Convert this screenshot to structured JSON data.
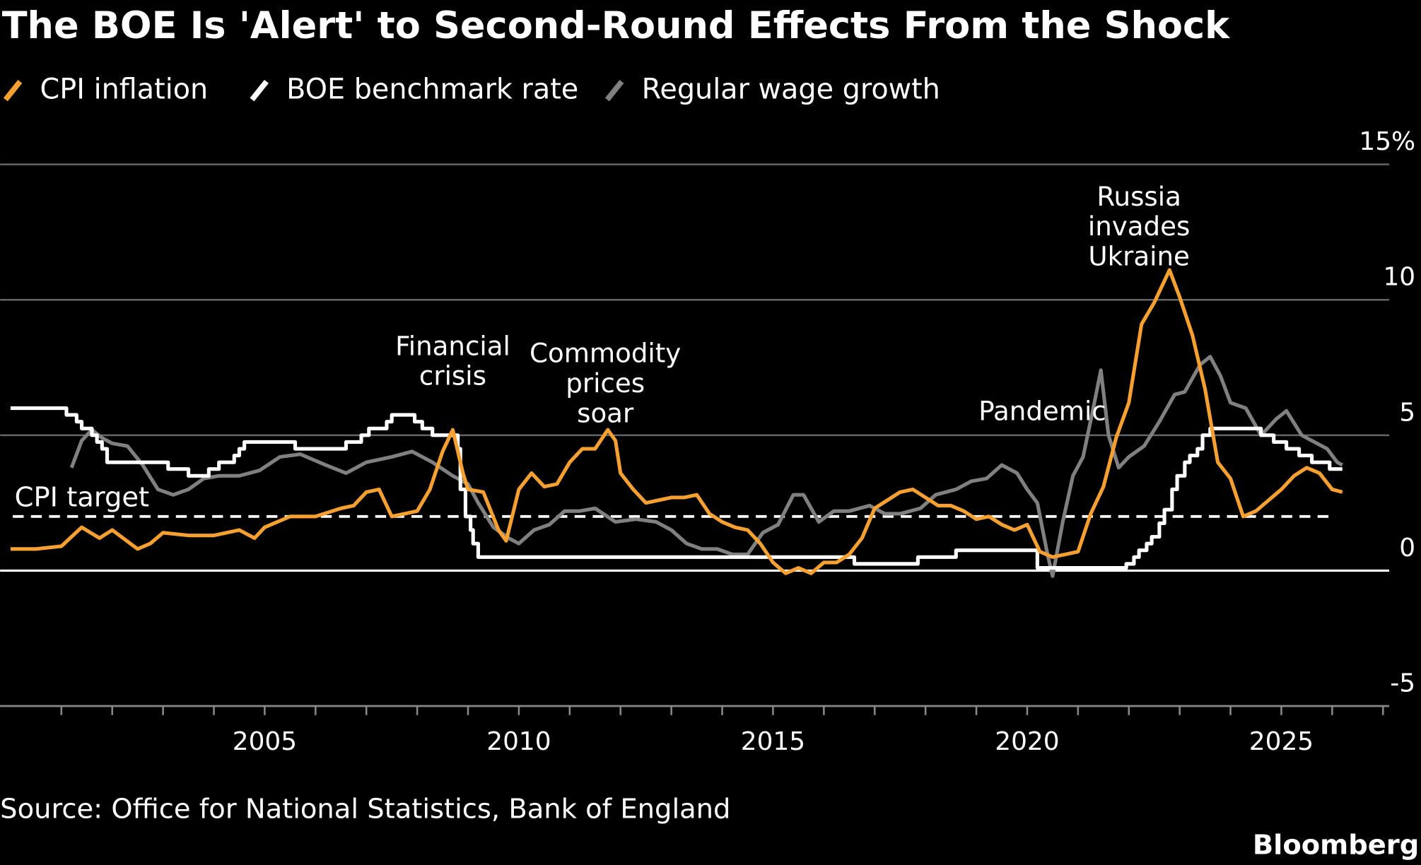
{
  "title": "The BOE Is 'Alert' to Second-Round Effects From the Shock",
  "source": "Source: Office for National Statistics, Bank of England",
  "brand": "Bloomberg",
  "chart_data": {
    "type": "line",
    "title": "The BOE Is 'Alert' to Second-Round Effects From the Shock",
    "xlabel": "",
    "ylabel": "",
    "xlim": [
      1999.8,
      2027.1
    ],
    "ylim": [
      -5,
      15
    ],
    "x_ticks": [
      "2005",
      "2010",
      "2015",
      "2020",
      "2025"
    ],
    "y_ticks": [
      "15%",
      "10",
      "5",
      "0",
      "-5"
    ],
    "grid": true,
    "legend_position": "top-left",
    "reference_line": {
      "label": "CPI target",
      "value": 2
    },
    "annotations": [
      {
        "lines": [
          "Financial",
          "crisis"
        ],
        "x": 2008.7
      },
      {
        "lines": [
          "Commodity",
          "prices",
          "soar"
        ],
        "x": 2011.7
      },
      {
        "lines": [
          "Pandemic"
        ],
        "x": 2020.3
      },
      {
        "lines": [
          "Russia",
          "invades",
          "Ukraine"
        ],
        "x": 2022.2
      }
    ],
    "series": [
      {
        "name": "CPI inflation",
        "color": "#f5a030",
        "points": [
          [
            2000.0,
            0.8
          ],
          [
            2000.5,
            0.8
          ],
          [
            2001.0,
            0.9
          ],
          [
            2001.4,
            1.6
          ],
          [
            2001.75,
            1.2
          ],
          [
            2002.0,
            1.5
          ],
          [
            2002.5,
            0.8
          ],
          [
            2002.75,
            1.0
          ],
          [
            2003.0,
            1.4
          ],
          [
            2003.5,
            1.3
          ],
          [
            2004.0,
            1.3
          ],
          [
            2004.5,
            1.5
          ],
          [
            2004.8,
            1.2
          ],
          [
            2005.0,
            1.6
          ],
          [
            2005.5,
            2.0
          ],
          [
            2006.0,
            2.0
          ],
          [
            2006.5,
            2.3
          ],
          [
            2006.75,
            2.4
          ],
          [
            2007.0,
            2.9
          ],
          [
            2007.25,
            3.0
          ],
          [
            2007.5,
            2.0
          ],
          [
            2007.75,
            2.1
          ],
          [
            2008.0,
            2.2
          ],
          [
            2008.25,
            3.0
          ],
          [
            2008.5,
            4.4
          ],
          [
            2008.7,
            5.2
          ],
          [
            2008.9,
            3.6
          ],
          [
            2009.0,
            3.0
          ],
          [
            2009.3,
            2.9
          ],
          [
            2009.6,
            1.5
          ],
          [
            2009.75,
            1.1
          ],
          [
            2010.0,
            3.0
          ],
          [
            2010.25,
            3.6
          ],
          [
            2010.5,
            3.1
          ],
          [
            2010.75,
            3.2
          ],
          [
            2011.0,
            4.0
          ],
          [
            2011.25,
            4.5
          ],
          [
            2011.5,
            4.5
          ],
          [
            2011.75,
            5.2
          ],
          [
            2011.9,
            4.8
          ],
          [
            2012.0,
            3.6
          ],
          [
            2012.25,
            3.0
          ],
          [
            2012.5,
            2.5
          ],
          [
            2012.75,
            2.6
          ],
          [
            2013.0,
            2.7
          ],
          [
            2013.25,
            2.7
          ],
          [
            2013.5,
            2.8
          ],
          [
            2013.75,
            2.1
          ],
          [
            2014.0,
            1.8
          ],
          [
            2014.25,
            1.6
          ],
          [
            2014.5,
            1.5
          ],
          [
            2014.75,
            1.0
          ],
          [
            2015.0,
            0.3
          ],
          [
            2015.25,
            -0.1
          ],
          [
            2015.5,
            0.1
          ],
          [
            2015.75,
            -0.1
          ],
          [
            2016.0,
            0.3
          ],
          [
            2016.25,
            0.3
          ],
          [
            2016.5,
            0.6
          ],
          [
            2016.75,
            1.2
          ],
          [
            2017.0,
            2.3
          ],
          [
            2017.25,
            2.6
          ],
          [
            2017.5,
            2.9
          ],
          [
            2017.75,
            3.0
          ],
          [
            2018.0,
            2.7
          ],
          [
            2018.25,
            2.4
          ],
          [
            2018.5,
            2.4
          ],
          [
            2018.75,
            2.2
          ],
          [
            2019.0,
            1.9
          ],
          [
            2019.25,
            2.0
          ],
          [
            2019.5,
            1.7
          ],
          [
            2019.75,
            1.5
          ],
          [
            2020.0,
            1.7
          ],
          [
            2020.25,
            0.7
          ],
          [
            2020.5,
            0.5
          ],
          [
            2020.75,
            0.6
          ],
          [
            2021.0,
            0.7
          ],
          [
            2021.25,
            2.1
          ],
          [
            2021.5,
            3.1
          ],
          [
            2021.75,
            4.9
          ],
          [
            2022.0,
            6.2
          ],
          [
            2022.25,
            9.1
          ],
          [
            2022.5,
            9.9
          ],
          [
            2022.8,
            11.1
          ],
          [
            2023.0,
            10.1
          ],
          [
            2023.25,
            8.7
          ],
          [
            2023.5,
            6.7
          ],
          [
            2023.75,
            4.0
          ],
          [
            2024.0,
            3.4
          ],
          [
            2024.25,
            2.0
          ],
          [
            2024.5,
            2.2
          ],
          [
            2024.75,
            2.6
          ],
          [
            2025.0,
            3.0
          ],
          [
            2025.25,
            3.5
          ],
          [
            2025.5,
            3.8
          ],
          [
            2025.75,
            3.6
          ],
          [
            2026.0,
            3.0
          ],
          [
            2026.2,
            2.9
          ]
        ]
      },
      {
        "name": "BOE benchmark rate",
        "color": "#ffffff",
        "step": true,
        "points": [
          [
            2000.0,
            6.0
          ],
          [
            2001.1,
            5.75
          ],
          [
            2001.3,
            5.5
          ],
          [
            2001.4,
            5.25
          ],
          [
            2001.6,
            5.0
          ],
          [
            2001.7,
            4.75
          ],
          [
            2001.8,
            4.5
          ],
          [
            2001.9,
            4.0
          ],
          [
            2003.1,
            3.75
          ],
          [
            2003.5,
            3.5
          ],
          [
            2003.9,
            3.75
          ],
          [
            2004.1,
            4.0
          ],
          [
            2004.4,
            4.25
          ],
          [
            2004.5,
            4.5
          ],
          [
            2004.6,
            4.75
          ],
          [
            2005.6,
            4.5
          ],
          [
            2006.6,
            4.75
          ],
          [
            2006.9,
            5.0
          ],
          [
            2007.05,
            5.25
          ],
          [
            2007.4,
            5.5
          ],
          [
            2007.5,
            5.75
          ],
          [
            2007.95,
            5.5
          ],
          [
            2008.1,
            5.25
          ],
          [
            2008.3,
            5.0
          ],
          [
            2008.8,
            4.5
          ],
          [
            2008.85,
            3.0
          ],
          [
            2008.95,
            2.0
          ],
          [
            2009.05,
            1.5
          ],
          [
            2009.1,
            1.0
          ],
          [
            2009.2,
            0.5
          ],
          [
            2016.6,
            0.25
          ],
          [
            2017.85,
            0.5
          ],
          [
            2018.6,
            0.75
          ],
          [
            2020.2,
            0.1
          ],
          [
            2021.95,
            0.25
          ],
          [
            2022.1,
            0.5
          ],
          [
            2022.2,
            0.75
          ],
          [
            2022.35,
            1.0
          ],
          [
            2022.45,
            1.25
          ],
          [
            2022.6,
            1.75
          ],
          [
            2022.7,
            2.25
          ],
          [
            2022.85,
            3.0
          ],
          [
            2022.95,
            3.5
          ],
          [
            2023.1,
            4.0
          ],
          [
            2023.2,
            4.25
          ],
          [
            2023.35,
            4.5
          ],
          [
            2023.45,
            5.0
          ],
          [
            2023.6,
            5.25
          ],
          [
            2024.6,
            5.0
          ],
          [
            2024.85,
            4.75
          ],
          [
            2025.1,
            4.5
          ],
          [
            2025.35,
            4.25
          ],
          [
            2025.6,
            4.0
          ],
          [
            2025.95,
            3.75
          ],
          [
            2026.2,
            3.75
          ]
        ]
      },
      {
        "name": "Regular wage growth",
        "color": "#808080",
        "points": [
          [
            2001.2,
            3.8
          ],
          [
            2001.4,
            4.8
          ],
          [
            2001.6,
            5.2
          ],
          [
            2001.8,
            4.9
          ],
          [
            2002.0,
            4.7
          ],
          [
            2002.3,
            4.6
          ],
          [
            2002.6,
            3.9
          ],
          [
            2002.9,
            3.0
          ],
          [
            2003.2,
            2.8
          ],
          [
            2003.5,
            3.0
          ],
          [
            2003.8,
            3.4
          ],
          [
            2004.1,
            3.5
          ],
          [
            2004.5,
            3.5
          ],
          [
            2004.9,
            3.7
          ],
          [
            2005.3,
            4.2
          ],
          [
            2005.7,
            4.3
          ],
          [
            2006.2,
            3.9
          ],
          [
            2006.6,
            3.6
          ],
          [
            2007.0,
            4.0
          ],
          [
            2007.5,
            4.2
          ],
          [
            2007.9,
            4.4
          ],
          [
            2008.3,
            4.0
          ],
          [
            2008.7,
            3.5
          ],
          [
            2009.0,
            3.2
          ],
          [
            2009.2,
            2.5
          ],
          [
            2009.5,
            1.6
          ],
          [
            2009.8,
            1.2
          ],
          [
            2010.0,
            1.0
          ],
          [
            2010.3,
            1.5
          ],
          [
            2010.6,
            1.7
          ],
          [
            2010.9,
            2.2
          ],
          [
            2011.2,
            2.2
          ],
          [
            2011.5,
            2.3
          ],
          [
            2011.9,
            1.8
          ],
          [
            2012.3,
            1.9
          ],
          [
            2012.7,
            1.8
          ],
          [
            2013.0,
            1.5
          ],
          [
            2013.3,
            1.0
          ],
          [
            2013.6,
            0.8
          ],
          [
            2013.9,
            0.8
          ],
          [
            2014.2,
            0.6
          ],
          [
            2014.5,
            0.6
          ],
          [
            2014.8,
            1.4
          ],
          [
            2015.1,
            1.7
          ],
          [
            2015.4,
            2.8
          ],
          [
            2015.6,
            2.8
          ],
          [
            2015.9,
            1.8
          ],
          [
            2016.2,
            2.2
          ],
          [
            2016.5,
            2.2
          ],
          [
            2016.9,
            2.4
          ],
          [
            2017.2,
            2.1
          ],
          [
            2017.5,
            2.1
          ],
          [
            2017.9,
            2.3
          ],
          [
            2018.2,
            2.8
          ],
          [
            2018.6,
            3.0
          ],
          [
            2018.9,
            3.3
          ],
          [
            2019.2,
            3.4
          ],
          [
            2019.5,
            3.9
          ],
          [
            2019.8,
            3.6
          ],
          [
            2020.0,
            3.0
          ],
          [
            2020.2,
            2.5
          ],
          [
            2020.4,
            0.6
          ],
          [
            2020.5,
            -0.2
          ],
          [
            2020.7,
            1.8
          ],
          [
            2020.9,
            3.5
          ],
          [
            2021.1,
            4.2
          ],
          [
            2021.3,
            6.0
          ],
          [
            2021.45,
            7.4
          ],
          [
            2021.6,
            5.0
          ],
          [
            2021.8,
            3.8
          ],
          [
            2022.0,
            4.2
          ],
          [
            2022.3,
            4.6
          ],
          [
            2022.6,
            5.5
          ],
          [
            2022.9,
            6.5
          ],
          [
            2023.1,
            6.6
          ],
          [
            2023.4,
            7.6
          ],
          [
            2023.6,
            7.9
          ],
          [
            2023.8,
            7.2
          ],
          [
            2024.0,
            6.2
          ],
          [
            2024.3,
            6.0
          ],
          [
            2024.6,
            5.0
          ],
          [
            2024.9,
            5.6
          ],
          [
            2025.1,
            5.9
          ],
          [
            2025.4,
            5.0
          ],
          [
            2025.7,
            4.7
          ],
          [
            2025.9,
            4.5
          ],
          [
            2026.1,
            4.0
          ],
          [
            2026.2,
            3.9
          ]
        ]
      }
    ]
  }
}
